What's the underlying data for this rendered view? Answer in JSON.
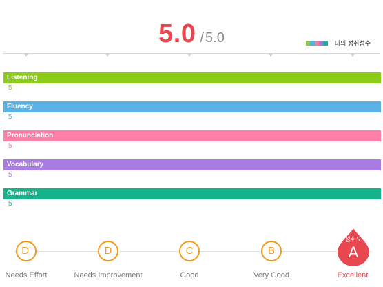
{
  "score": {
    "value": "5.0",
    "separator": "/",
    "total": "5.0"
  },
  "legend": {
    "label": "나의 성취점수",
    "swatch_colors": [
      "#8cc63f",
      "#4fb3e0",
      "#f47aa3",
      "#a57be0",
      "#1ab394"
    ]
  },
  "categories": [
    {
      "name": "Listening",
      "score": "5",
      "color": "#8dcc19"
    },
    {
      "name": "Fluency",
      "score": "5",
      "color": "#5ab3e4"
    },
    {
      "name": "Pronunciation",
      "score": "5",
      "color": "#ff7fa6"
    },
    {
      "name": "Vocabulary",
      "score": "5",
      "color": "#a87ce2"
    },
    {
      "name": "Grammar",
      "score": "5",
      "color": "#15b28b"
    }
  ],
  "grades": [
    {
      "letter": "D",
      "modifier": "-",
      "label": "Needs Effort"
    },
    {
      "letter": "D",
      "modifier": "",
      "label": "Needs Improvement"
    },
    {
      "letter": "C",
      "modifier": "",
      "label": "Good"
    },
    {
      "letter": "B",
      "modifier": "",
      "label": "Very Good"
    },
    {
      "letter": "A",
      "modifier": "",
      "label": "Excellent"
    }
  ],
  "current_grade": {
    "caption": "성취도",
    "letter": "A"
  },
  "colors": {
    "accent": "#e8474f",
    "grade_ring": "#f39a1e"
  }
}
